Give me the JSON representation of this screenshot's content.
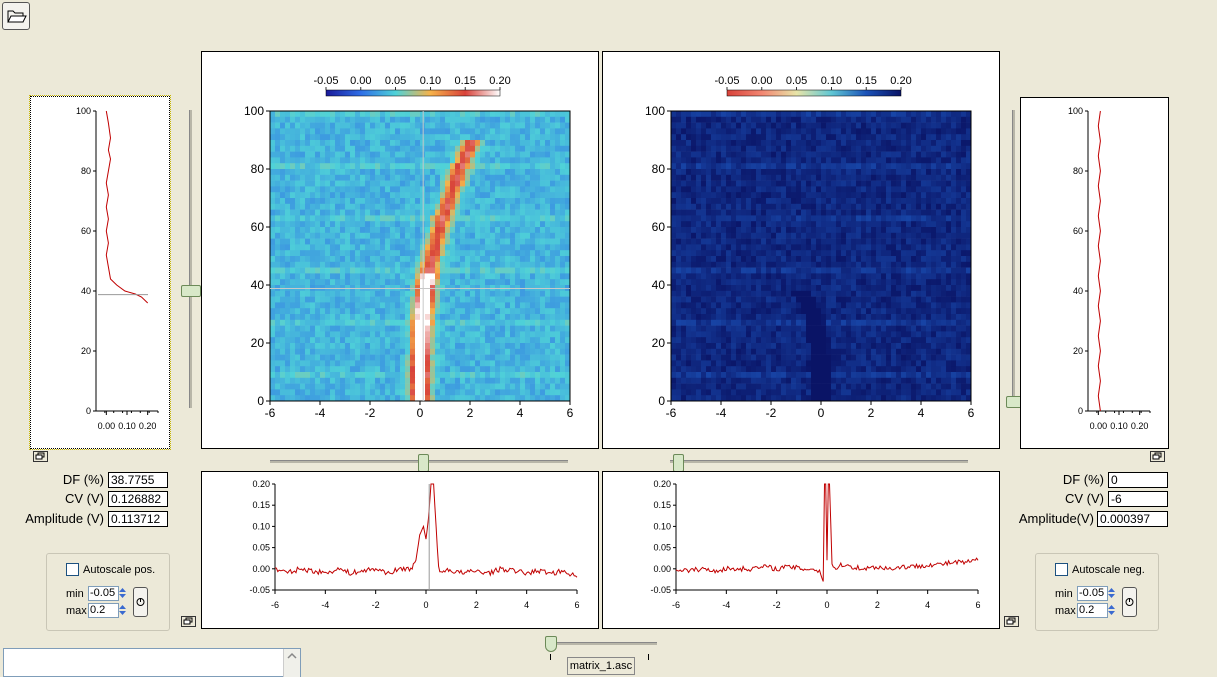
{
  "toolbar": {
    "open_icon": "folder-open-icon"
  },
  "heatmap_left": {
    "colorbar_ticks": [
      "-0.05",
      "0.00",
      "0.05",
      "0.10",
      "0.15",
      "0.20"
    ],
    "colors": [
      "#1a1a9a",
      "#2f6ee6",
      "#4fd2d8",
      "#f6b24a",
      "#d8423a",
      "#ffffff"
    ]
  },
  "heatmap_right": {
    "colorbar_ticks": [
      "-0.05",
      "0.00",
      "0.05",
      "0.10",
      "0.15",
      "0.20"
    ],
    "colors": [
      "#d8423a",
      "#f28672",
      "#e8e4a8",
      "#60c7d4",
      "#1b52b8",
      "#0a1466"
    ]
  },
  "left_readout": {
    "df_label": "DF (%)",
    "df_value": "38.7755",
    "cv_label": "CV (V)",
    "cv_value": "0.126882",
    "amp_label": "Amplitude (V)",
    "amp_value": "0.113712"
  },
  "right_readout": {
    "df_label": "DF (%)",
    "df_value": "0",
    "cv_label": "CV (V)",
    "cv_value": "-6",
    "amp_label": "Amplitude(V)",
    "amp_value": "0.000397"
  },
  "autoscale_pos": {
    "label": "Autoscale pos.",
    "min_label": "min",
    "min_value": "-0.05",
    "max_label": "max",
    "max_value": "0.2"
  },
  "autoscale_neg": {
    "label": "Autoscale neg.",
    "min_label": "min",
    "min_value": "-0.05",
    "max_label": "max",
    "max_value": "0.2"
  },
  "file_label": "matrix_1.asc",
  "chart_data": [
    {
      "type": "heatmap",
      "name_hint": "left-heatmap",
      "xlim": [
        -6,
        6
      ],
      "ylim": [
        0,
        100
      ],
      "x_ticks": [
        "-6",
        "-4",
        "-2",
        "0",
        "2",
        "4",
        "6"
      ],
      "y_ticks": [
        "0",
        "20",
        "40",
        "60",
        "80",
        "100"
      ],
      "color_range": [
        -0.05,
        0.2
      ],
      "cursor": {
        "x": 0.127,
        "y": 38.8
      },
      "ridge": [
        [
          0.0,
          0
        ],
        [
          0.0,
          10
        ],
        [
          0.05,
          20
        ],
        [
          0.1,
          30
        ],
        [
          0.25,
          40
        ],
        [
          0.5,
          50
        ],
        [
          0.8,
          60
        ],
        [
          1.2,
          70
        ],
        [
          1.6,
          80
        ],
        [
          2.1,
          90
        ]
      ]
    },
    {
      "type": "heatmap",
      "name_hint": "right-heatmap",
      "xlim": [
        -6,
        6
      ],
      "ylim": [
        0,
        100
      ],
      "x_ticks": [
        "-6",
        "-4",
        "-2",
        "0",
        "2",
        "4",
        "6"
      ],
      "y_ticks": [
        "0",
        "20",
        "40",
        "60",
        "80",
        "100"
      ],
      "color_range": [
        -0.05,
        0.2
      ],
      "ridge": [
        [
          0.0,
          0
        ],
        [
          0.0,
          10
        ],
        [
          -0.1,
          20
        ],
        [
          -0.3,
          30
        ],
        [
          -0.8,
          38
        ]
      ]
    },
    {
      "type": "line",
      "name_hint": "left-vertical-profile",
      "xlim": [
        -0.05,
        0.25
      ],
      "ylim": [
        0,
        100
      ],
      "x_ticks": [
        "0.00",
        "0.10",
        "0.20"
      ],
      "y_ticks": [
        "0",
        "20",
        "40",
        "60",
        "80",
        "100"
      ],
      "x": [
        0.0,
        0.01,
        0.02,
        0.01,
        0.02,
        0.01,
        0.0,
        0.01,
        0.0,
        0.01,
        0.0,
        0.01,
        0.0,
        0.01,
        0.02,
        0.05,
        0.09,
        0.14,
        0.17,
        0.2
      ],
      "y": [
        100,
        96,
        91,
        87,
        84,
        80,
        76,
        72,
        68,
        64,
        60,
        56,
        52,
        48,
        44,
        42,
        40,
        39,
        38,
        36
      ],
      "cursor_y": 38.8
    },
    {
      "type": "line",
      "name_hint": "right-vertical-profile",
      "xlim": [
        -0.05,
        0.25
      ],
      "ylim": [
        0,
        100
      ],
      "x_ticks": [
        "0.00",
        "0.10",
        "0.20"
      ],
      "y_ticks": [
        "0",
        "20",
        "40",
        "60",
        "80",
        "100"
      ],
      "x": [
        0.01,
        0.0,
        0.01,
        0.0,
        0.01,
        0.0,
        0.01,
        0.0,
        0.01,
        0.0,
        0.01,
        0.0,
        0.01,
        0.0,
        0.01,
        0.0,
        0.01,
        0.0,
        0.01,
        0.0,
        0.01
      ],
      "y": [
        100,
        95,
        90,
        85,
        80,
        75,
        70,
        65,
        60,
        55,
        50,
        45,
        40,
        35,
        30,
        25,
        20,
        15,
        10,
        5,
        0
      ]
    },
    {
      "type": "line",
      "name_hint": "left-horizontal-profile",
      "xlim": [
        -6,
        6
      ],
      "ylim": [
        -0.05,
        0.2
      ],
      "x_ticks": [
        "-6",
        "-4",
        "-2",
        "0",
        "2",
        "4",
        "6"
      ],
      "y_ticks": [
        "-0.05",
        "0.00",
        "0.05",
        "0.10",
        "0.15",
        "0.20"
      ],
      "x": [
        -6,
        -5.5,
        -5,
        -4.5,
        -4,
        -3.5,
        -3,
        -2.5,
        -2,
        -1.5,
        -1,
        -0.6,
        -0.4,
        -0.25,
        -0.1,
        0.0,
        0.1,
        0.2,
        0.3,
        0.4,
        0.5,
        0.6,
        0.8,
        1.0,
        1.5,
        2,
        2.5,
        3,
        3.5,
        4,
        4.5,
        5,
        5.5,
        6
      ],
      "y": [
        0.0,
        -0.01,
        0.0,
        -0.005,
        -0.01,
        0.0,
        -0.01,
        -0.005,
        0.0,
        -0.01,
        0.0,
        0.0,
        0.02,
        0.08,
        0.1,
        0.07,
        0.12,
        0.2,
        0.2,
        0.1,
        0.0,
        -0.01,
        0.0,
        -0.005,
        -0.01,
        -0.005,
        -0.01,
        0.0,
        -0.005,
        -0.01,
        -0.005,
        -0.01,
        -0.005,
        -0.02
      ],
      "cursor_x": 0.127
    },
    {
      "type": "line",
      "name_hint": "right-horizontal-profile",
      "xlim": [
        -6,
        6
      ],
      "ylim": [
        -0.05,
        0.2
      ],
      "x_ticks": [
        "-6",
        "-4",
        "-2",
        "0",
        "2",
        "4",
        "6"
      ],
      "y_ticks": [
        "-0.05",
        "0.00",
        "0.05",
        "0.10",
        "0.15",
        "0.20"
      ],
      "x": [
        -6,
        -5.5,
        -5,
        -4.5,
        -4,
        -3.5,
        -3,
        -2.5,
        -2,
        -1.5,
        -1,
        -0.6,
        -0.3,
        -0.15,
        -0.1,
        -0.05,
        0.0,
        0.05,
        0.1,
        0.2,
        0.4,
        0.6,
        1.0,
        1.5,
        2,
        2.5,
        3,
        3.5,
        4,
        4.5,
        5,
        5.5,
        6
      ],
      "y": [
        0.0,
        -0.005,
        0.0,
        -0.005,
        0.0,
        0.0,
        0.0,
        0.005,
        0.0,
        0.005,
        0.0,
        0.0,
        -0.005,
        -0.03,
        0.2,
        0.2,
        0.02,
        0.2,
        0.2,
        0.01,
        0.0,
        0.01,
        0.005,
        0.0,
        0.005,
        0.0,
        0.005,
        0.005,
        0.01,
        0.01,
        0.015,
        0.015,
        0.02
      ]
    }
  ]
}
